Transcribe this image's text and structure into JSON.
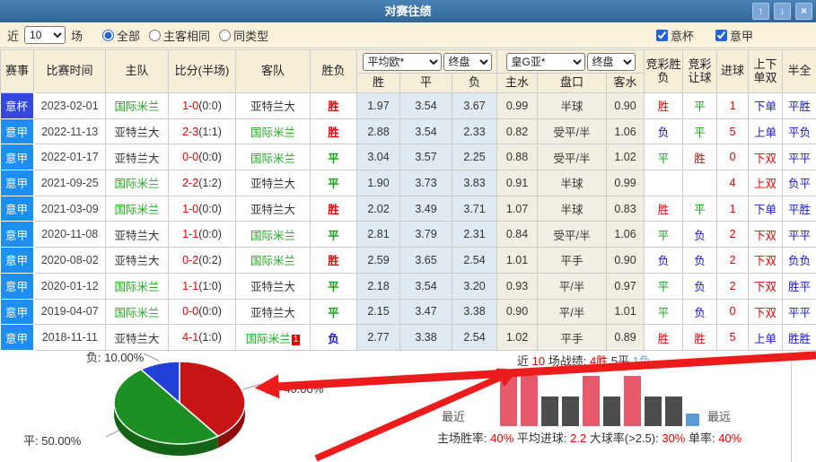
{
  "window": {
    "title": "对赛往绩",
    "icons": {
      "up": "↑",
      "down": "↓",
      "close": "×"
    }
  },
  "filter": {
    "near_label": "近",
    "count_value": "10",
    "games_label": "场",
    "radios": [
      {
        "label": "全部",
        "checked": true
      },
      {
        "label": "主客相同",
        "checked": false
      },
      {
        "label": "同类型",
        "checked": false
      }
    ],
    "checkboxes": [
      {
        "label": "意杯",
        "checked": true
      },
      {
        "label": "意甲",
        "checked": true
      }
    ]
  },
  "table": {
    "headers": {
      "league": "赛事",
      "time": "比赛时间",
      "home": "主队",
      "score": "比分(半场)",
      "away": "客队",
      "result": "胜负",
      "win": "胜",
      "draw": "平",
      "lose": "负",
      "home_water": "主水",
      "handicap": "盘口",
      "away_water": "客水",
      "jc_result": "竞彩胜负",
      "jc_handicap": "竞彩让球",
      "goals": "进球",
      "ou_oe": "上下单双",
      "half_full": "半全"
    },
    "selects": {
      "odds_company": "平均欧*",
      "odds_stage": "终盘",
      "asia_company": "皇G亚*",
      "asia_stage": "终盘"
    },
    "team_colors": {
      "国际米兰": "green",
      "亚特兰大": "dark"
    },
    "rows": [
      {
        "league": "意杯",
        "lcls": "cup",
        "date": "2023-02-01",
        "home": "国际米兰",
        "score": "1-0",
        "half": "(0:0)",
        "away": "亚特兰大",
        "badge": "",
        "result": "胜",
        "w": "1.97",
        "d": "3.54",
        "l": "3.67",
        "hw": "0.99",
        "pan": "半球",
        "aw": "0.90",
        "jc": "胜",
        "jr": "平",
        "g": "1",
        "ou": "下单",
        "hf": "平胜"
      },
      {
        "league": "意甲",
        "lcls": "jia",
        "date": "2022-11-13",
        "home": "亚特兰大",
        "score": "2-3",
        "half": "(1:1)",
        "away": "国际米兰",
        "badge": "",
        "result": "胜",
        "w": "2.88",
        "d": "3.54",
        "l": "2.33",
        "hw": "0.82",
        "pan": "受平/半",
        "aw": "1.06",
        "jc": "负",
        "jr": "平",
        "g": "5",
        "ou": "上单",
        "hf": "平负"
      },
      {
        "league": "意甲",
        "lcls": "jia",
        "date": "2022-01-17",
        "home": "亚特兰大",
        "score": "0-0",
        "half": "(0:0)",
        "away": "国际米兰",
        "badge": "",
        "result": "平",
        "w": "3.04",
        "d": "3.57",
        "l": "2.25",
        "hw": "0.88",
        "pan": "受平/半",
        "aw": "1.02",
        "jc": "平",
        "jr": "胜",
        "g": "0",
        "ou": "下双",
        "hf": "平平"
      },
      {
        "league": "意甲",
        "lcls": "jia",
        "date": "2021-09-25",
        "home": "国际米兰",
        "score": "2-2",
        "half": "(1:2)",
        "away": "亚特兰大",
        "badge": "",
        "result": "平",
        "w": "1.90",
        "d": "3.73",
        "l": "3.83",
        "hw": "0.91",
        "pan": "半球",
        "aw": "0.99",
        "jc": "",
        "jr": "",
        "g": "4",
        "ou": "上双",
        "hf": "负平"
      },
      {
        "league": "意甲",
        "lcls": "jia",
        "date": "2021-03-09",
        "home": "国际米兰",
        "score": "1-0",
        "half": "(0:0)",
        "away": "亚特兰大",
        "badge": "",
        "result": "胜",
        "w": "2.02",
        "d": "3.49",
        "l": "3.71",
        "hw": "1.07",
        "pan": "半球",
        "aw": "0.83",
        "jc": "胜",
        "jr": "平",
        "g": "1",
        "ou": "下单",
        "hf": "平胜"
      },
      {
        "league": "意甲",
        "lcls": "jia",
        "date": "2020-11-08",
        "home": "亚特兰大",
        "score": "1-1",
        "half": "(0:0)",
        "away": "国际米兰",
        "badge": "",
        "result": "平",
        "w": "2.81",
        "d": "3.79",
        "l": "2.31",
        "hw": "0.84",
        "pan": "受平/半",
        "aw": "1.06",
        "jc": "平",
        "jr": "负",
        "g": "2",
        "ou": "下双",
        "hf": "平平"
      },
      {
        "league": "意甲",
        "lcls": "jia",
        "date": "2020-08-02",
        "home": "亚特兰大",
        "score": "0-2",
        "half": "(0:2)",
        "away": "国际米兰",
        "badge": "",
        "result": "胜",
        "w": "2.59",
        "d": "3.65",
        "l": "2.54",
        "hw": "1.01",
        "pan": "平手",
        "aw": "0.90",
        "jc": "负",
        "jr": "负",
        "g": "2",
        "ou": "下双",
        "hf": "负负"
      },
      {
        "league": "意甲",
        "lcls": "jia",
        "date": "2020-01-12",
        "home": "国际米兰",
        "score": "1-1",
        "half": "(1:0)",
        "away": "亚特兰大",
        "badge": "",
        "result": "平",
        "w": "2.18",
        "d": "3.54",
        "l": "3.20",
        "hw": "0.93",
        "pan": "平/半",
        "aw": "0.97",
        "jc": "平",
        "jr": "负",
        "g": "2",
        "ou": "下双",
        "hf": "胜平"
      },
      {
        "league": "意甲",
        "lcls": "jia",
        "date": "2019-04-07",
        "home": "国际米兰",
        "score": "0-0",
        "half": "(0:0)",
        "away": "亚特兰大",
        "badge": "",
        "result": "平",
        "w": "2.15",
        "d": "3.47",
        "l": "3.38",
        "hw": "0.90",
        "pan": "平/半",
        "aw": "1.01",
        "jc": "平",
        "jr": "负",
        "g": "0",
        "ou": "下双",
        "hf": "平平"
      },
      {
        "league": "意甲",
        "lcls": "jia",
        "date": "2018-11-11",
        "home": "亚特兰大",
        "score": "4-1",
        "half": "(1:0)",
        "away": "国际米兰",
        "badge": "1",
        "result": "负",
        "w": "2.77",
        "d": "3.38",
        "l": "2.54",
        "hw": "1.02",
        "pan": "平手",
        "aw": "0.89",
        "jc": "胜",
        "jr": "胜",
        "g": "5",
        "ou": "上单",
        "hf": "胜胜"
      }
    ]
  },
  "pie_labels": {
    "win": "胜: 40.00%",
    "draw": "平: 50.00%",
    "lose": "负: 10.00%"
  },
  "recent": {
    "title_segments": [
      {
        "text": "近 ",
        "color": "dark"
      },
      {
        "text": "10",
        "color": "red"
      },
      {
        "text": " 场战绩: ",
        "color": "dark"
      },
      {
        "text": "4胜",
        "color": "red"
      },
      {
        "text": " 5平",
        "color": "dark"
      },
      {
        "text": " 1负",
        "color": "lblue"
      }
    ],
    "left_label": "最近",
    "right_label": "最远",
    "bar_styles": {
      "胜": {
        "color": "#e8596b",
        "height": 56,
        "width": 19
      },
      "平": {
        "color": "#4d4d4d",
        "height": 33,
        "width": 19
      },
      "负": {
        "color": "#5b9bd5",
        "height": 14,
        "width": 15
      }
    },
    "stats": [
      {
        "label": "主场胜率:",
        "value": "40%"
      },
      {
        "label": "平均进球:",
        "value": "2.2"
      },
      {
        "label": "大球率(>2.5):",
        "value": "30%"
      },
      {
        "label": "单率:",
        "value": "40%"
      }
    ]
  },
  "chart_data": [
    {
      "type": "pie",
      "labels": [
        "胜",
        "平",
        "负"
      ],
      "values": [
        40,
        50,
        10
      ],
      "colors": [
        "#c81414",
        "#1e8f22",
        "#2341d6"
      ],
      "side_colors": [
        "#8e0d0d",
        "#136414",
        "#18278f"
      ],
      "legend_position": "outside-callouts"
    },
    {
      "type": "bar",
      "title": "近 10 场战绩: 4胜 5平 1负",
      "x_order": "most-recent-left",
      "results": [
        "胜",
        "胜",
        "平",
        "平",
        "胜",
        "平",
        "胜",
        "平",
        "平",
        "负"
      ]
    }
  ]
}
